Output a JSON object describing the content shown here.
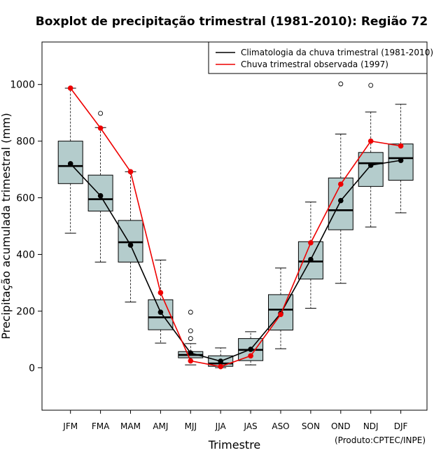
{
  "chart_data": {
    "type": "boxplot",
    "title": "Boxplot de precipitação trimestral (1981-2010): Região 72",
    "xlabel": "Trimestre",
    "ylabel": "Precipitação acumulada trimestral (mm)",
    "credit": "(Produto:CPTEC/INPE)",
    "ylim": [
      -150,
      1150
    ],
    "yticks": [
      0,
      200,
      400,
      600,
      800,
      1000
    ],
    "categories": [
      "JFM",
      "FMA",
      "MAM",
      "AMJ",
      "MJJ",
      "JJA",
      "JAS",
      "ASO",
      "SON",
      "OND",
      "NDJ",
      "DJF"
    ],
    "boxes": [
      {
        "min": 475,
        "q1": 650,
        "median": 712,
        "q3": 800,
        "max": 987,
        "outliers": []
      },
      {
        "min": 373,
        "q1": 553,
        "median": 595,
        "q3": 680,
        "max": 848,
        "outliers": [
          898
        ]
      },
      {
        "min": 232,
        "q1": 373,
        "median": 443,
        "q3": 520,
        "max": 692,
        "outliers": []
      },
      {
        "min": 87,
        "q1": 134,
        "median": 178,
        "q3": 240,
        "max": 380,
        "outliers": []
      },
      {
        "min": 10,
        "q1": 35,
        "median": 45,
        "q3": 57,
        "max": 85,
        "outliers": [
          103,
          130,
          196
        ]
      },
      {
        "min": 0,
        "q1": 5,
        "median": 15,
        "q3": 42,
        "max": 70,
        "outliers": []
      },
      {
        "min": 10,
        "q1": 25,
        "median": 63,
        "q3": 103,
        "max": 127,
        "outliers": []
      },
      {
        "min": 67,
        "q1": 133,
        "median": 205,
        "q3": 258,
        "max": 352,
        "outliers": []
      },
      {
        "min": 210,
        "q1": 313,
        "median": 375,
        "q3": 445,
        "max": 585,
        "outliers": []
      },
      {
        "min": 298,
        "q1": 487,
        "median": 556,
        "q3": 670,
        "max": 825,
        "outliers": [
          1002
        ]
      },
      {
        "min": 497,
        "q1": 640,
        "median": 722,
        "q3": 760,
        "max": 903,
        "outliers": [
          997
        ]
      },
      {
        "min": 547,
        "q1": 662,
        "median": 740,
        "q3": 790,
        "max": 930,
        "outliers": []
      }
    ],
    "series": [
      {
        "name": "Climatologia da chuva trimestral (1981-2010)",
        "color": "#000000",
        "values": [
          720,
          607,
          433,
          196,
          52,
          23,
          65,
          192,
          382,
          590,
          715,
          732
        ]
      },
      {
        "name": "Chuva trimestral observada (1997)",
        "color": "#ee0000",
        "values": [
          987,
          846,
          692,
          265,
          24,
          4,
          42,
          188,
          441,
          648,
          800,
          783
        ]
      }
    ],
    "box_fill": "#b4cccc",
    "legend_position": "top-right"
  }
}
